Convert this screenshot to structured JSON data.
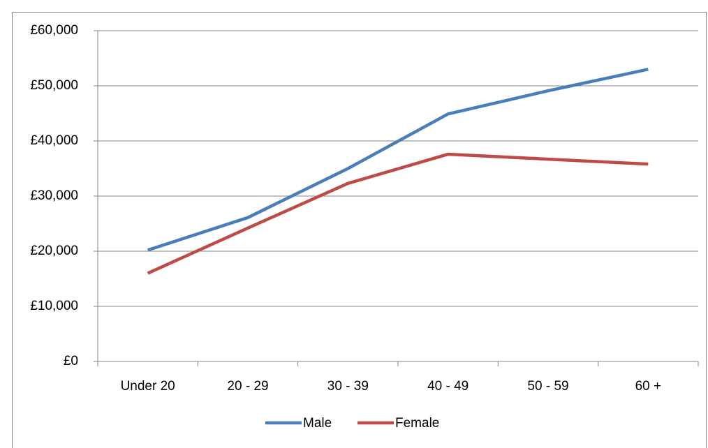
{
  "chart_data": {
    "type": "line",
    "categories": [
      "Under 20",
      "20 - 29",
      "30 - 39",
      "40 - 49",
      "50 - 59",
      "60 +"
    ],
    "series": [
      {
        "name": "Male",
        "color": "#4a7ebb",
        "values": [
          20200,
          26100,
          35000,
          44900,
          49100,
          53000
        ]
      },
      {
        "name": "Female",
        "color": "#be4b48",
        "values": [
          16000,
          24200,
          32300,
          37600,
          36700,
          35800
        ]
      }
    ],
    "ylim": [
      0,
      60000
    ],
    "yticks": [
      {
        "value": 0,
        "label": "£0"
      },
      {
        "value": 10000,
        "label": "£10,000"
      },
      {
        "value": 20000,
        "label": "£20,000"
      },
      {
        "value": 30000,
        "label": "£30,000"
      },
      {
        "value": 40000,
        "label": "£40,000"
      },
      {
        "value": 50000,
        "label": "£50,000"
      },
      {
        "value": 60000,
        "label": "£60,000"
      }
    ],
    "grid": true,
    "legend": "bottom"
  }
}
